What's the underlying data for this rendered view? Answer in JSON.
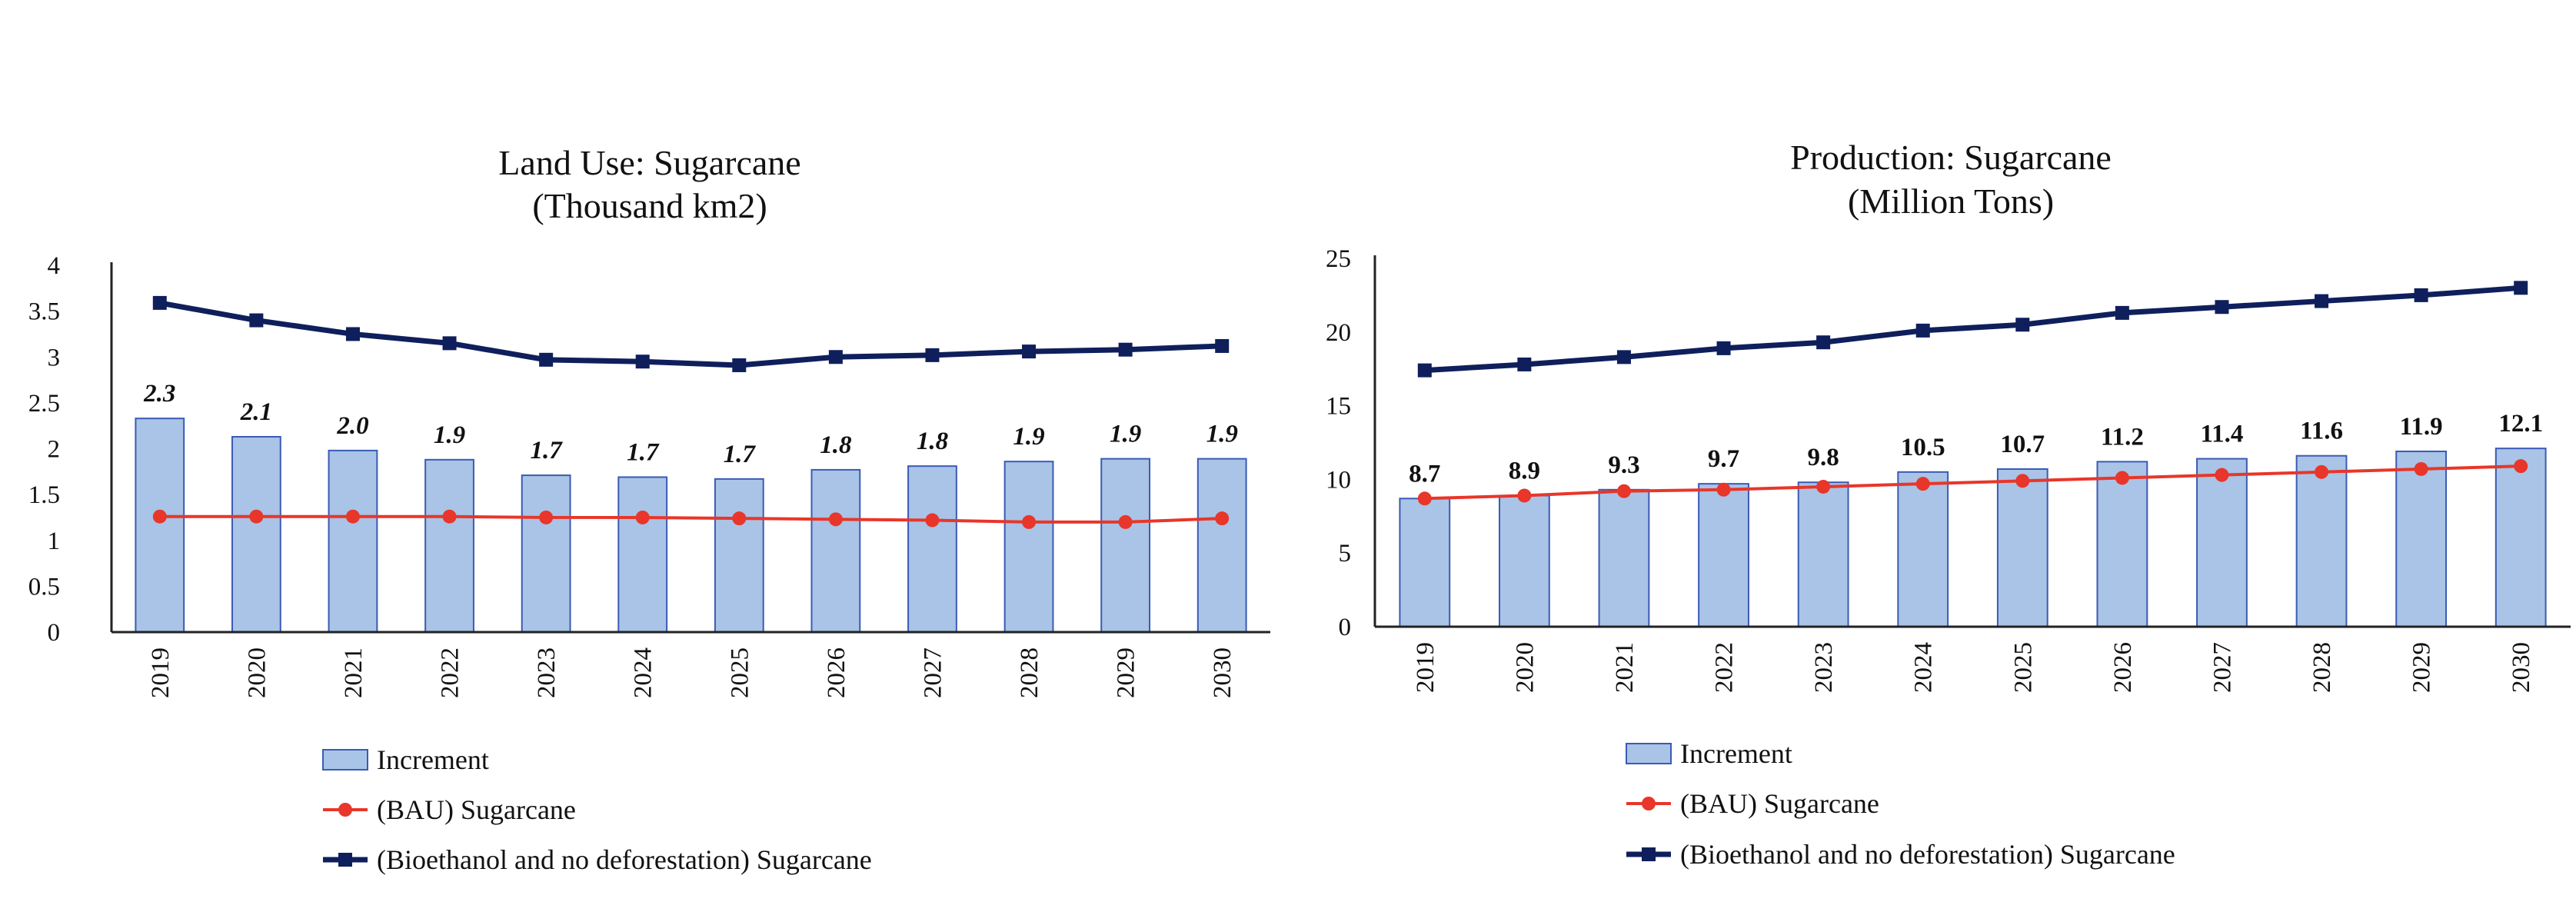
{
  "colors": {
    "bar_fill": "#a9c4e6",
    "bar_stroke": "#3a5bb5",
    "bau_line": "#e8362a",
    "bioethanol_line": "#0f1f5c",
    "axis": "#222222"
  },
  "chart_data": [
    {
      "type": "bar",
      "title": "Land Use: Sugarcane",
      "subtitle": "(Thousand km2)",
      "categories": [
        "2019",
        "2020",
        "2021",
        "2022",
        "2023",
        "2024",
        "2025",
        "2026",
        "2027",
        "2028",
        "2029",
        "2030"
      ],
      "ylim": [
        0,
        4
      ],
      "yticks": [
        0,
        0.5,
        1,
        1.5,
        2,
        2.5,
        3,
        3.5,
        4
      ],
      "ytick_labels": [
        "0",
        "0.5",
        "1",
        "1.5",
        "2",
        "2.5",
        "3",
        "3.5",
        "4"
      ],
      "label_style": "bold-italic",
      "grid": false,
      "legend_position": "bottom",
      "series": [
        {
          "name": "Increment",
          "kind": "bar",
          "values": [
            2.3,
            2.1,
            2.0,
            1.9,
            1.7,
            1.7,
            1.7,
            1.8,
            1.8,
            1.9,
            1.9,
            1.9
          ],
          "bar_values": [
            2.33,
            2.13,
            1.98,
            1.88,
            1.71,
            1.69,
            1.67,
            1.77,
            1.81,
            1.86,
            1.89,
            1.89
          ],
          "labels": [
            "2.3",
            "2.1",
            "2.0",
            "1.9",
            "1.7",
            "1.7",
            "1.7",
            "1.8",
            "1.8",
            "1.9",
            "1.9",
            "1.9"
          ]
        },
        {
          "name": "(BAU) Sugarcane",
          "kind": "line",
          "marker": "circle",
          "values": [
            1.26,
            1.26,
            1.26,
            1.26,
            1.25,
            1.25,
            1.24,
            1.23,
            1.22,
            1.2,
            1.2,
            1.24
          ]
        },
        {
          "name": "(Bioethanol and no deforestation) Sugarcane",
          "kind": "line",
          "marker": "square",
          "values": [
            3.59,
            3.4,
            3.25,
            3.15,
            2.97,
            2.95,
            2.91,
            3.0,
            3.02,
            3.06,
            3.08,
            3.12
          ]
        }
      ]
    },
    {
      "type": "bar",
      "title": "Production: Sugarcane",
      "subtitle": "(Million Tons)",
      "categories": [
        "2019",
        "2020",
        "2021",
        "2022",
        "2023",
        "2024",
        "2025",
        "2026",
        "2027",
        "2028",
        "2029",
        "2030"
      ],
      "ylim": [
        0,
        25
      ],
      "yticks": [
        0,
        5,
        10,
        15,
        20,
        25
      ],
      "ytick_labels": [
        "0",
        "5",
        "10",
        "15",
        "20",
        "25"
      ],
      "label_style": "bold",
      "grid": false,
      "legend_position": "bottom",
      "series": [
        {
          "name": "Increment",
          "kind": "bar",
          "values": [
            8.7,
            8.9,
            9.3,
            9.7,
            9.8,
            10.5,
            10.7,
            11.2,
            11.4,
            11.6,
            11.9,
            12.1
          ],
          "labels": [
            "8.7",
            "8.9",
            "9.3",
            "9.7",
            "9.8",
            "10.5",
            "10.7",
            "11.2",
            "11.4",
            "11.6",
            "11.9",
            "12.1"
          ]
        },
        {
          "name": "(BAU) Sugarcane",
          "kind": "line",
          "marker": "circle",
          "values": [
            8.7,
            8.9,
            9.2,
            9.3,
            9.5,
            9.7,
            9.9,
            10.1,
            10.3,
            10.5,
            10.7,
            10.9
          ]
        },
        {
          "name": "(Bioethanol and no deforestation) Sugarcane",
          "kind": "line",
          "marker": "square",
          "values": [
            17.4,
            17.8,
            18.3,
            18.9,
            19.3,
            20.1,
            20.5,
            21.3,
            21.7,
            22.1,
            22.5,
            23.0
          ]
        }
      ]
    }
  ]
}
